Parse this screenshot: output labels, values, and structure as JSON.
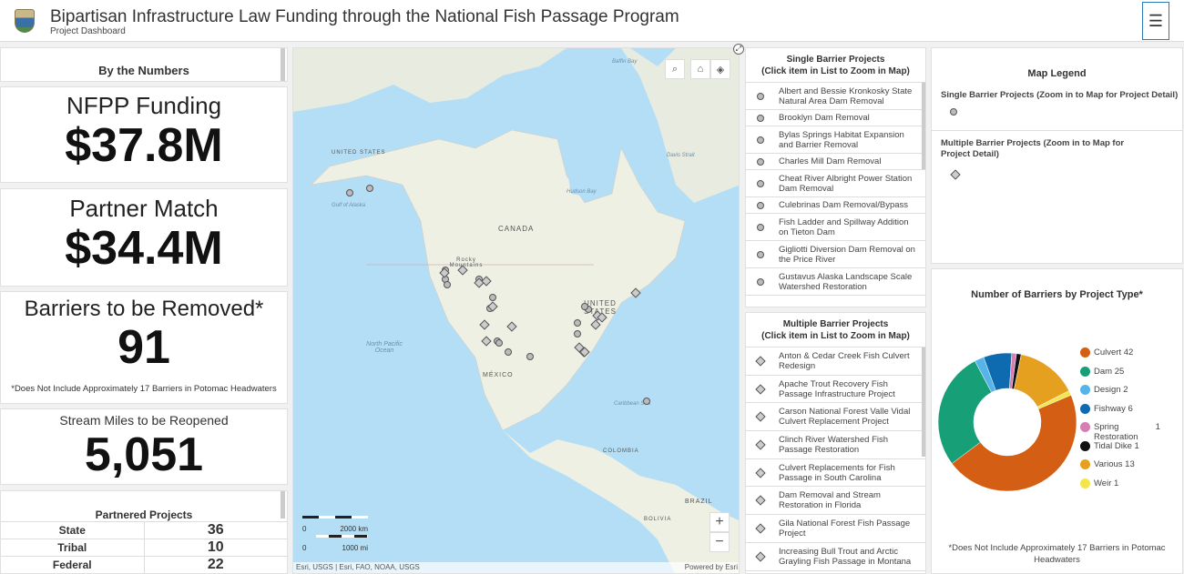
{
  "header": {
    "title": "Bipartisan Infrastructure Law Funding through the National Fish Passage Program",
    "subtitle": "Project Dashboard",
    "menu_icon": "hamburger-icon"
  },
  "numbers": {
    "heading": "By the Numbers",
    "funding": {
      "label": "NFPP Funding",
      "value": "$37.8M"
    },
    "match": {
      "label": "Partner Match",
      "value": "$34.4M"
    },
    "barriers": {
      "label": "Barriers to be Removed*",
      "value": "91",
      "note": "*Does Not Include Approximately 17 Barriers in Potomac Headwaters"
    },
    "miles": {
      "label": "Stream Miles to be Reopened",
      "value": "5,051"
    },
    "partnered": {
      "heading": "Partnered Projects",
      "rows": [
        {
          "type": "State",
          "count": "36"
        },
        {
          "type": "Tribal",
          "count": "10"
        },
        {
          "type": "Federal",
          "count": "22"
        }
      ]
    }
  },
  "map": {
    "labels": {
      "canada": "CANADA",
      "us": "UNITED STATES",
      "mexico": "MÉXICO",
      "alaska": "UNITED STATES",
      "npo": "North Pacific Ocean",
      "colombia": "COLOMBIA",
      "brazil": "BRAZIL",
      "bolivia": "BOLIVIA",
      "hudson": "Hudson Bay",
      "gulf": "Gulf of Alaska",
      "baffin": "Baffin Bay",
      "davis": "Davis Strait",
      "caribbean": "Caribbean Sea",
      "rocky": "Rocky Mountains"
    },
    "scale": {
      "km_zero": "0",
      "km": "2000 km",
      "mi_zero": "0",
      "mi": "1000 mi"
    },
    "attribution": "Esri, USGS | Esri, FAO, NOAA, USGS",
    "powered": "Powered by Esri",
    "zoom_in": "+",
    "zoom_out": "−"
  },
  "single": {
    "heading": "Single Barrier Projects\n(Click item in List to Zoom in Map)",
    "items": [
      "Albert and Bessie Kronkosky State Natural Area Dam Removal",
      "Brooklyn Dam Removal",
      "Bylas Springs Habitat Expansion and Barrier Removal",
      "Charles Mill Dam Removal",
      "Cheat River Albright Power Station Dam Removal",
      "Culebrinas Dam Removal/Bypass",
      "Fish Ladder and Spillway Addition on Tieton Dam",
      "Gigliotti Diversion Dam Removal on the Price River",
      "Gustavus Alaska Landscape Scale Watershed Restoration"
    ]
  },
  "multiple": {
    "heading": "Multiple Barrier Projects\n(Click item in List to Zoom in Map)",
    "items": [
      "Anton & Cedar Creek Fish Culvert Redesign",
      "Apache Trout Recovery Fish Passage Infrastructure Project",
      "Carson National Forest Valle Vidal Culvert Replacement Project",
      "Clinch River Watershed Fish Passage Restoration",
      "Culvert Replacements for Fish Passage in South Carolina",
      "Dam Removal and Stream Restoration in Florida",
      "Gila National Forest Fish Passage Project",
      "Increasing Bull Trout and Arctic Grayling Fish Passage in Montana"
    ]
  },
  "legend": {
    "heading": "Map Legend",
    "single": "Single Barrier Projects (Zoom in to Map for Project Detail)",
    "multiple": "Multiple Barrier Projects (Zoom in to Map for Project Detail)"
  },
  "chart_data": {
    "type": "pie",
    "title": "Number of Barriers by Project Type*",
    "donut": true,
    "categories": [
      "Culvert",
      "Dam",
      "Design",
      "Fishway",
      "Spring Restoration",
      "Tidal Dike",
      "Various",
      "Weir"
    ],
    "values": [
      42,
      25,
      2,
      6,
      1,
      1,
      13,
      1
    ],
    "colors": [
      "#d45f14",
      "#17a078",
      "#56b4e9",
      "#0f6bb0",
      "#d67fb5",
      "#111111",
      "#e5a020",
      "#f2e64a"
    ],
    "legend_placement": "right",
    "note": "*Does Not Include Approximately 17 Barriers in Potomac Headwaters"
  }
}
